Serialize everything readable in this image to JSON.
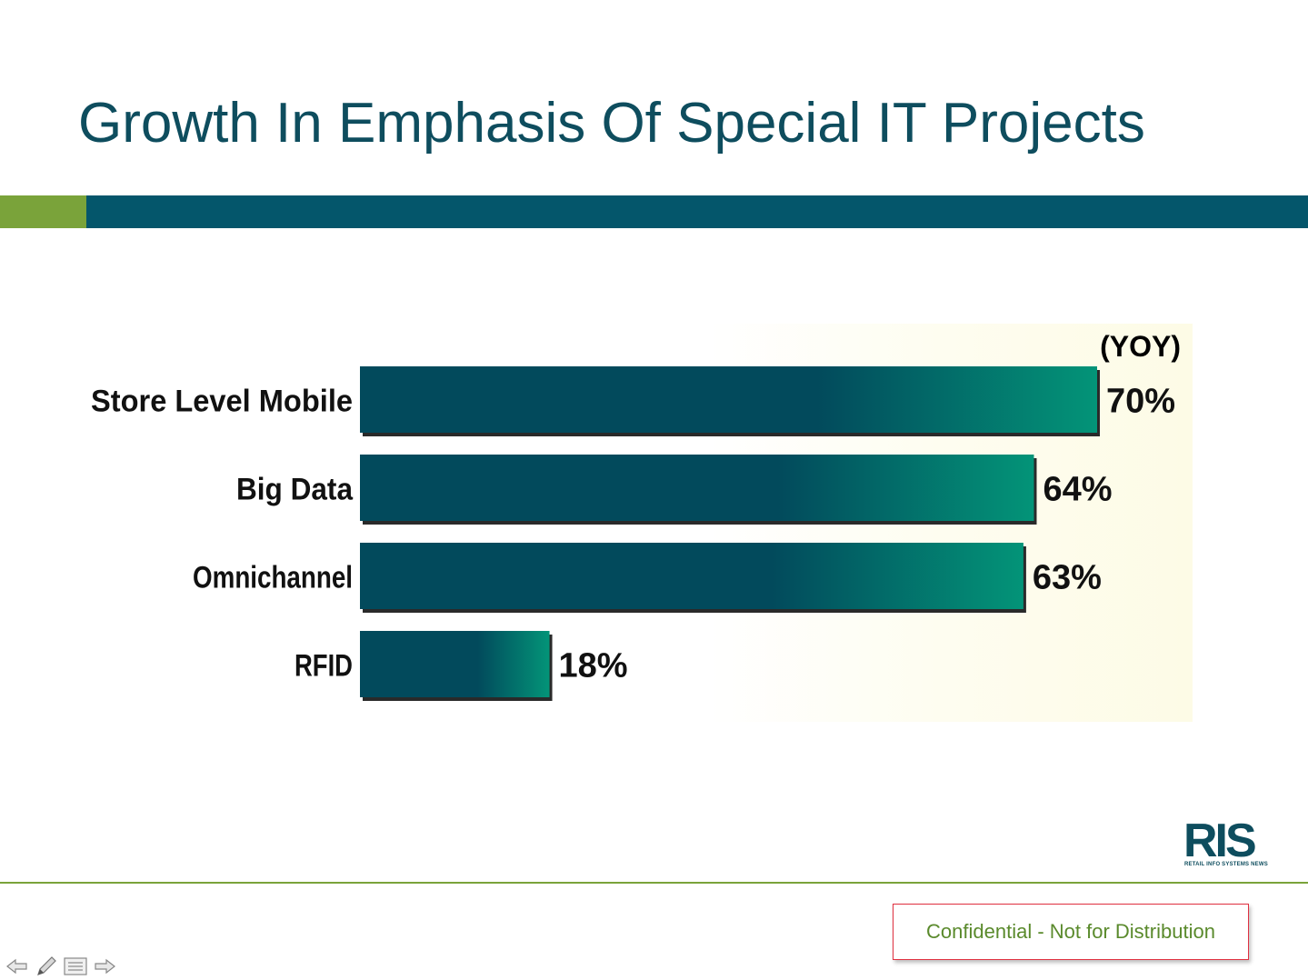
{
  "slide": {
    "title": "Growth In Emphasis Of Special IT Projects",
    "footer_notice": "Confidential - Not for Distribution",
    "logo_text": "RIS",
    "logo_subtext": "RETAIL INFO SYSTEMS NEWS"
  },
  "colors": {
    "title": "#0e4d5e",
    "band_green": "#7aa33a",
    "band_teal": "#04566b",
    "bar_dark": "#024a5c",
    "bar_light": "#039478",
    "notice_text": "#5a8a2c",
    "notice_border": "#e03040"
  },
  "nav": {
    "icons": [
      "arrow-left-icon",
      "pen-icon",
      "menu-icon",
      "arrow-right-icon"
    ]
  },
  "chart_data": {
    "type": "bar",
    "orientation": "horizontal",
    "annotation": "(YOY)",
    "categories": [
      "Store Level Mobile",
      "Big Data",
      "Omnichannel",
      "RFID"
    ],
    "values": [
      70,
      64,
      63,
      18
    ],
    "value_labels": [
      "70%",
      "64%",
      "63%",
      "18%"
    ],
    "unit": "%",
    "xlim": [
      0,
      70
    ],
    "grid": false,
    "legend": "none"
  }
}
